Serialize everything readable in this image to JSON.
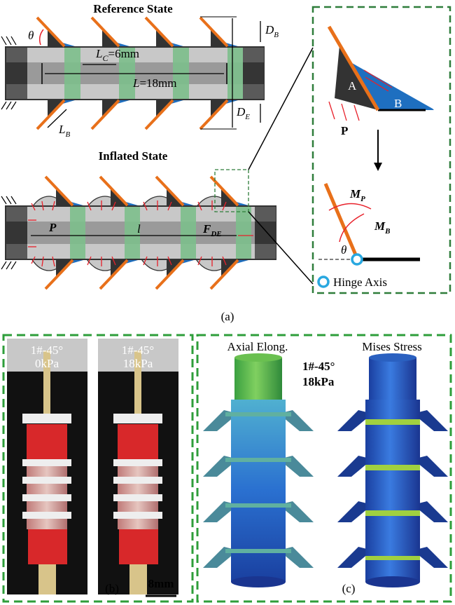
{
  "panel_a": {
    "reference_title": "Reference State",
    "inflated_title": "Inflated State",
    "theta": "θ",
    "lc_label": "L",
    "lc_sub": "C",
    "lc_value": "=6mm",
    "l_label": "L",
    "l_value": "=18mm",
    "db": "D",
    "db_sub": "B",
    "de": "D",
    "de_sub": "E",
    "lb": "L",
    "lb_sub": "B",
    "p": "P",
    "l_small": "l",
    "f": "F",
    "f_sub": "DE",
    "caption": "(a)"
  },
  "detail": {
    "a": "A",
    "b": "B",
    "p": "P",
    "mp": "M",
    "mp_sub": "P",
    "mb": "M",
    "mb_sub": "B",
    "theta": "θ",
    "hinge": "Hinge Axis"
  },
  "panel_b": {
    "left_label1": "1#-45°",
    "left_label2": "0kPa",
    "right_label1": "1#-45°",
    "right_label2": "18kPa",
    "caption": "(b)",
    "scale": "8mm"
  },
  "panel_c": {
    "axial": "Axial Elong.",
    "mises": "Mises Stress",
    "label1": "1#-45°",
    "label2": "18kPa",
    "caption": "(c)"
  },
  "colors": {
    "orange": "#e8701a",
    "blue": "#1e6fc0",
    "green": "#7fc08a",
    "dash": "#2e7d3a",
    "red": "#e8202a",
    "hinge": "#29a8e0"
  }
}
